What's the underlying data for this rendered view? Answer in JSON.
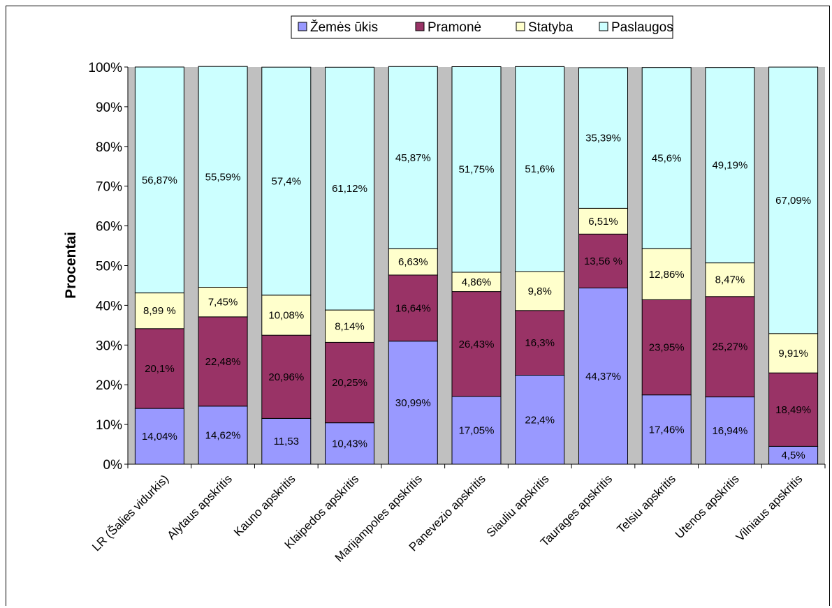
{
  "chart_data": {
    "type": "bar",
    "stacked": true,
    "percent": true,
    "title": "",
    "xlabel": "",
    "ylabel": "Procentai",
    "ylim": [
      0,
      100
    ],
    "yticks": [
      "0%",
      "10%",
      "20%",
      "30%",
      "40%",
      "50%",
      "60%",
      "70%",
      "80%",
      "90%",
      "100%"
    ],
    "grid": false,
    "plot_background": "#c0c0c0",
    "legend_position": "top",
    "categories": [
      "LR (Šalies vidurkis)",
      "Alytaus apskritis",
      "Kauno apskritis",
      "Klaipedos apskritis",
      "Marijampoles apskritis",
      "Panevezio apskritis",
      "Siauliu apskritis",
      "Taurages apskritis",
      "Telsiu apskritis",
      "Utenos apskritis",
      "Vilniaus apskritis"
    ],
    "series": [
      {
        "name": "Žemės ūkis",
        "color": "#9999ff",
        "values": [
          14.04,
          14.62,
          11.53,
          10.43,
          30.99,
          17.05,
          22.4,
          44.37,
          17.46,
          16.94,
          4.5
        ],
        "labels": [
          "14,04%",
          "14,62%",
          "11,53",
          "10,43%",
          "30,99%",
          "17,05%",
          "22,4%",
          "44,37%",
          "17,46%",
          "16,94%",
          "4,5%"
        ]
      },
      {
        "name": "Pramonė",
        "color": "#993366",
        "values": [
          20.1,
          22.48,
          20.96,
          20.25,
          16.64,
          26.43,
          16.3,
          13.56,
          23.95,
          25.27,
          18.49
        ],
        "labels": [
          "20,1%",
          "22,48%",
          "20,96%",
          "20,25%",
          "16,64%",
          "26,43%",
          "16,3%",
          "13,56 %",
          "23,95%",
          "25,27%",
          "18,49%"
        ]
      },
      {
        "name": "Statyba",
        "color": "#ffffcc",
        "values": [
          8.99,
          7.45,
          10.08,
          8.14,
          6.63,
          4.86,
          9.8,
          6.51,
          12.86,
          8.47,
          9.91
        ],
        "labels": [
          "8,99 %",
          "7,45%",
          "10,08%",
          "8,14%",
          "6,63%",
          "4,86%",
          "9,8%",
          "6,51%",
          "12,86%",
          "8,47%",
          "9,91%"
        ]
      },
      {
        "name": "Paslaugos",
        "color": "#ccffff",
        "values": [
          56.87,
          55.59,
          57.4,
          61.12,
          45.87,
          51.75,
          51.6,
          35.39,
          45.6,
          49.19,
          67.09
        ],
        "labels": [
          "56,87%",
          "55,59%",
          "57,4%",
          "61,12%",
          "45,87%",
          "51,75%",
          "51,6%",
          "35,39%",
          "45,6%",
          "49,19%",
          "67,09%"
        ]
      }
    ]
  }
}
